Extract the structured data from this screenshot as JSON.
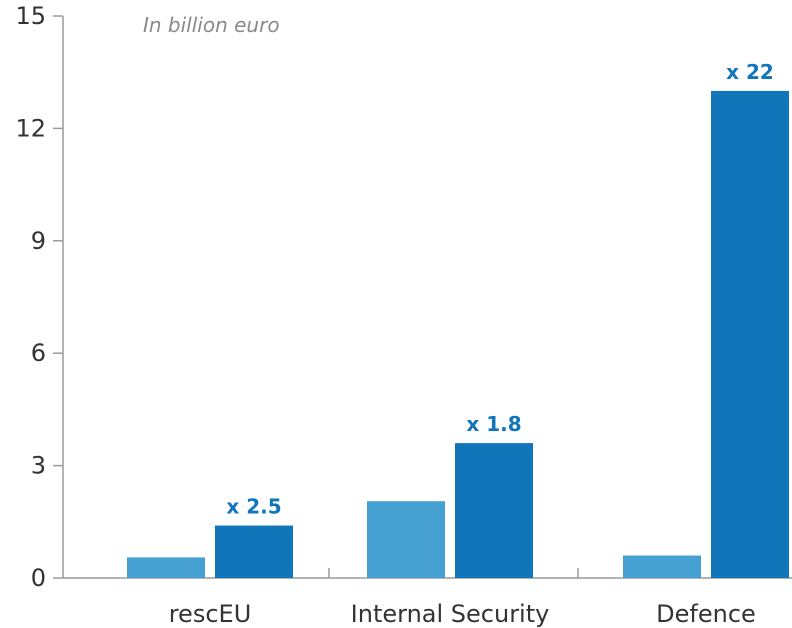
{
  "colors": {
    "light_bar": "#46a0d2",
    "dark_bar": "#1075b9",
    "label": "#1075b9",
    "axis": "#9a9a9a",
    "text": "#333333"
  },
  "chart_data": {
    "type": "bar",
    "unit_label": "In billion euro",
    "categories": [
      "rescEU",
      "Internal Security",
      "Defence"
    ],
    "series": [
      {
        "values": [
          0.55,
          2.05,
          0.6
        ]
      },
      {
        "values": [
          1.4,
          3.6,
          13.0
        ]
      }
    ],
    "data_labels": [
      "x 2.5",
      "x 1.8",
      "x 22"
    ],
    "yticks": [
      "0",
      "3",
      "6",
      "9",
      "12",
      "15"
    ],
    "ylim": [
      0,
      15
    ],
    "grid": false
  }
}
